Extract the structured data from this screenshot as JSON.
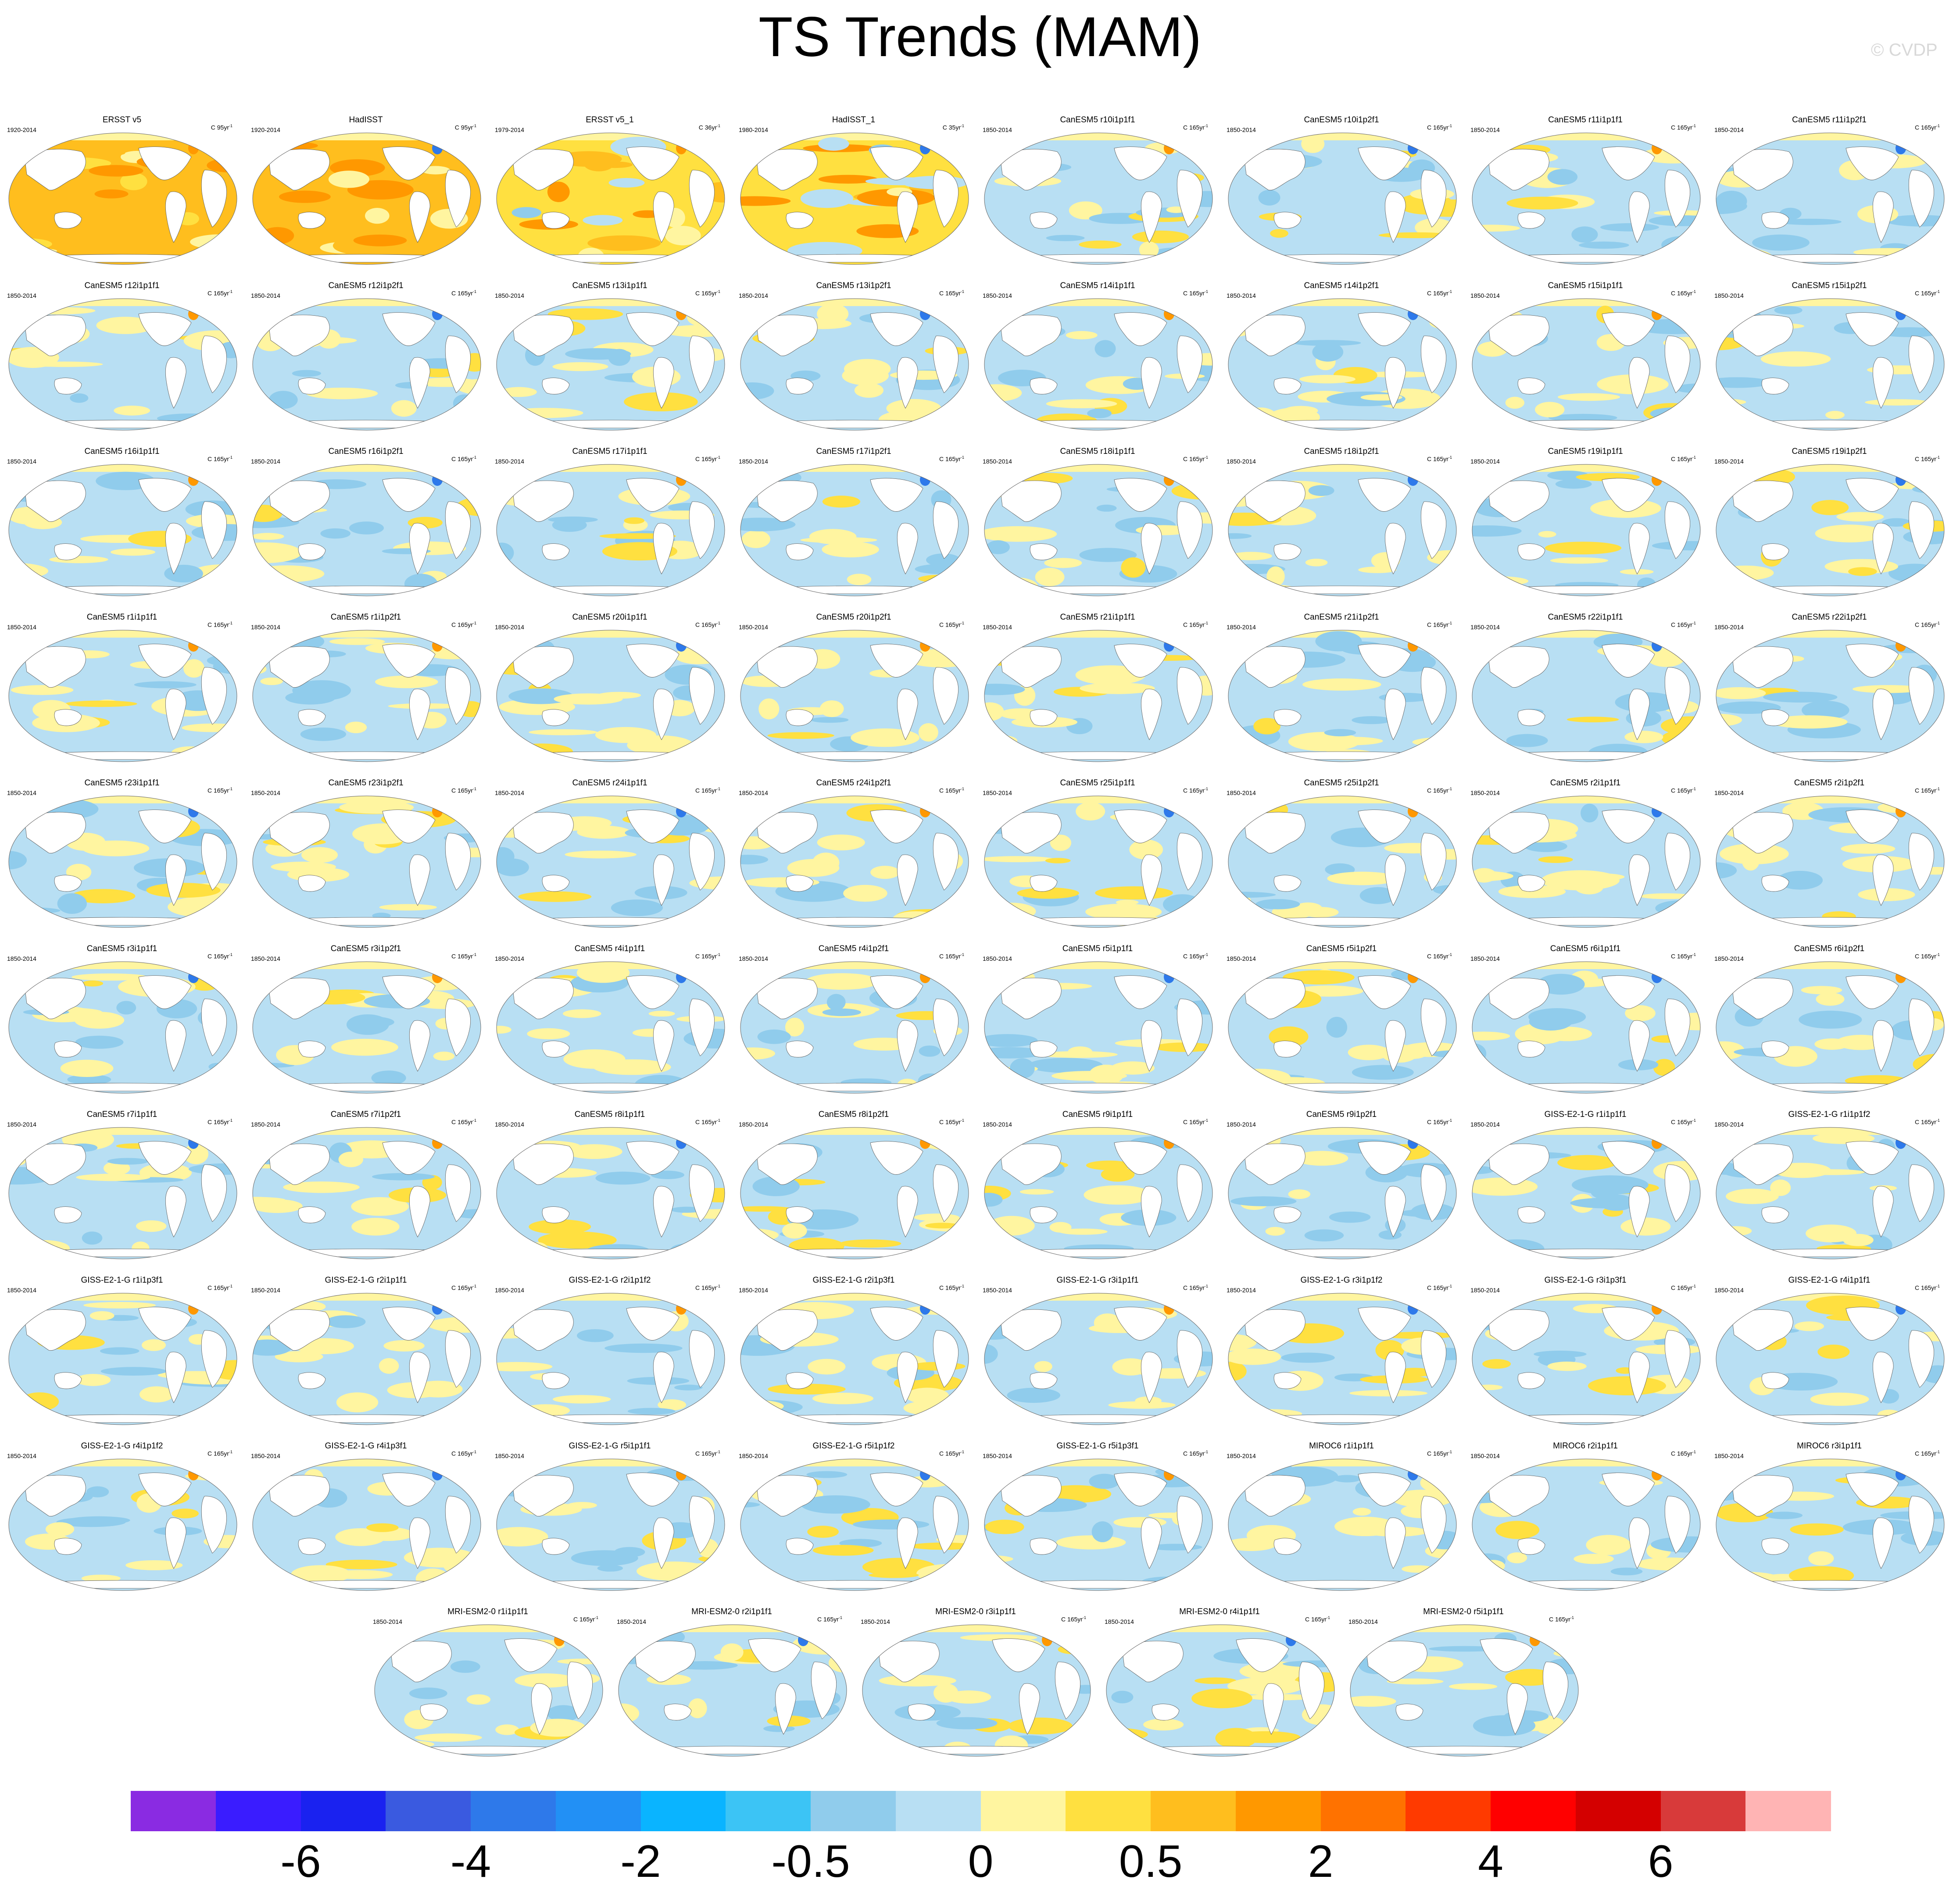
{
  "title": "TS Trends (MAM)",
  "watermark": "© CVDP",
  "panels": [
    {
      "title": "ERSST v5",
      "period": "1920-2014",
      "units": "C 95yr",
      "tone": "warm-strong"
    },
    {
      "title": "HadISST",
      "period": "1920-2014",
      "units": "C 95yr",
      "tone": "warm-strong"
    },
    {
      "title": "ERSST v5_1",
      "period": "1979-2014",
      "units": "C 36yr",
      "tone": "warm-mixed"
    },
    {
      "title": "HadISST_1",
      "period": "1980-2014",
      "units": "C 35yr",
      "tone": "warm-mixed"
    },
    {
      "title": "CanESM5 r10i1p1f1",
      "period": "1850-2014",
      "units": "C 165yr",
      "tone": "mixed"
    },
    {
      "title": "CanESM5 r10i1p2f1",
      "period": "1850-2014",
      "units": "C 165yr",
      "tone": "mixed"
    },
    {
      "title": "CanESM5 r11i1p1f1",
      "period": "1850-2014",
      "units": "C 165yr",
      "tone": "mixed"
    },
    {
      "title": "CanESM5 r11i1p2f1",
      "period": "1850-2014",
      "units": "C 165yr",
      "tone": "mixed"
    },
    {
      "title": "CanESM5 r12i1p1f1",
      "period": "1850-2014",
      "units": "C 165yr",
      "tone": "mixed"
    },
    {
      "title": "CanESM5 r12i1p2f1",
      "period": "1850-2014",
      "units": "C 165yr",
      "tone": "mixed"
    },
    {
      "title": "CanESM5 r13i1p1f1",
      "period": "1850-2014",
      "units": "C 165yr",
      "tone": "mixed"
    },
    {
      "title": "CanESM5 r13i1p2f1",
      "period": "1850-2014",
      "units": "C 165yr",
      "tone": "mixed"
    },
    {
      "title": "CanESM5 r14i1p1f1",
      "period": "1850-2014",
      "units": "C 165yr",
      "tone": "mixed"
    },
    {
      "title": "CanESM5 r14i1p2f1",
      "period": "1850-2014",
      "units": "C 165yr",
      "tone": "mixed"
    },
    {
      "title": "CanESM5 r15i1p1f1",
      "period": "1850-2014",
      "units": "C 165yr",
      "tone": "mixed"
    },
    {
      "title": "CanESM5 r15i1p2f1",
      "period": "1850-2014",
      "units": "C 165yr",
      "tone": "mixed"
    },
    {
      "title": "CanESM5 r16i1p1f1",
      "period": "1850-2014",
      "units": "C 165yr",
      "tone": "mixed"
    },
    {
      "title": "CanESM5 r16i1p2f1",
      "period": "1850-2014",
      "units": "C 165yr",
      "tone": "mixed"
    },
    {
      "title": "CanESM5 r17i1p1f1",
      "period": "1850-2014",
      "units": "C 165yr",
      "tone": "mixed"
    },
    {
      "title": "CanESM5 r17i1p2f1",
      "period": "1850-2014",
      "units": "C 165yr",
      "tone": "mixed"
    },
    {
      "title": "CanESM5 r18i1p1f1",
      "period": "1850-2014",
      "units": "C 165yr",
      "tone": "mixed"
    },
    {
      "title": "CanESM5 r18i1p2f1",
      "period": "1850-2014",
      "units": "C 165yr",
      "tone": "mixed"
    },
    {
      "title": "CanESM5 r19i1p1f1",
      "period": "1850-2014",
      "units": "C 165yr",
      "tone": "mixed"
    },
    {
      "title": "CanESM5 r19i1p2f1",
      "period": "1850-2014",
      "units": "C 165yr",
      "tone": "mixed"
    },
    {
      "title": "CanESM5 r1i1p1f1",
      "period": "1850-2014",
      "units": "C 165yr",
      "tone": "mixed"
    },
    {
      "title": "CanESM5 r1i1p2f1",
      "period": "1850-2014",
      "units": "C 165yr",
      "tone": "mixed"
    },
    {
      "title": "CanESM5 r20i1p1f1",
      "period": "1850-2014",
      "units": "C 165yr",
      "tone": "mixed"
    },
    {
      "title": "CanESM5 r20i1p2f1",
      "period": "1850-2014",
      "units": "C 165yr",
      "tone": "mixed"
    },
    {
      "title": "CanESM5 r21i1p1f1",
      "period": "1850-2014",
      "units": "C 165yr",
      "tone": "mixed"
    },
    {
      "title": "CanESM5 r21i1p2f1",
      "period": "1850-2014",
      "units": "C 165yr",
      "tone": "mixed"
    },
    {
      "title": "CanESM5 r22i1p1f1",
      "period": "1850-2014",
      "units": "C 165yr",
      "tone": "mixed"
    },
    {
      "title": "CanESM5 r22i1p2f1",
      "period": "1850-2014",
      "units": "C 165yr",
      "tone": "mixed"
    },
    {
      "title": "CanESM5 r23i1p1f1",
      "period": "1850-2014",
      "units": "C 165yr",
      "tone": "mixed"
    },
    {
      "title": "CanESM5 r23i1p2f1",
      "period": "1850-2014",
      "units": "C 165yr",
      "tone": "mixed"
    },
    {
      "title": "CanESM5 r24i1p1f1",
      "period": "1850-2014",
      "units": "C 165yr",
      "tone": "mixed"
    },
    {
      "title": "CanESM5 r24i1p2f1",
      "period": "1850-2014",
      "units": "C 165yr",
      "tone": "mixed"
    },
    {
      "title": "CanESM5 r25i1p1f1",
      "period": "1850-2014",
      "units": "C 165yr",
      "tone": "mixed"
    },
    {
      "title": "CanESM5 r25i1p2f1",
      "period": "1850-2014",
      "units": "C 165yr",
      "tone": "mixed"
    },
    {
      "title": "CanESM5 r2i1p1f1",
      "period": "1850-2014",
      "units": "C 165yr",
      "tone": "mixed"
    },
    {
      "title": "CanESM5 r2i1p2f1",
      "period": "1850-2014",
      "units": "C 165yr",
      "tone": "mixed"
    },
    {
      "title": "CanESM5 r3i1p1f1",
      "period": "1850-2014",
      "units": "C 165yr",
      "tone": "mixed"
    },
    {
      "title": "CanESM5 r3i1p2f1",
      "period": "1850-2014",
      "units": "C 165yr",
      "tone": "mixed"
    },
    {
      "title": "CanESM5 r4i1p1f1",
      "period": "1850-2014",
      "units": "C 165yr",
      "tone": "mixed"
    },
    {
      "title": "CanESM5 r4i1p2f1",
      "period": "1850-2014",
      "units": "C 165yr",
      "tone": "mixed"
    },
    {
      "title": "CanESM5 r5i1p1f1",
      "period": "1850-2014",
      "units": "C 165yr",
      "tone": "mixed"
    },
    {
      "title": "CanESM5 r5i1p2f1",
      "period": "1850-2014",
      "units": "C 165yr",
      "tone": "mixed"
    },
    {
      "title": "CanESM5 r6i1p1f1",
      "period": "1850-2014",
      "units": "C 165yr",
      "tone": "mixed"
    },
    {
      "title": "CanESM5 r6i1p2f1",
      "period": "1850-2014",
      "units": "C 165yr",
      "tone": "mixed"
    },
    {
      "title": "CanESM5 r7i1p1f1",
      "period": "1850-2014",
      "units": "C 165yr",
      "tone": "mixed"
    },
    {
      "title": "CanESM5 r7i1p2f1",
      "period": "1850-2014",
      "units": "C 165yr",
      "tone": "mixed"
    },
    {
      "title": "CanESM5 r8i1p1f1",
      "period": "1850-2014",
      "units": "C 165yr",
      "tone": "mixed"
    },
    {
      "title": "CanESM5 r8i1p2f1",
      "period": "1850-2014",
      "units": "C 165yr",
      "tone": "mixed"
    },
    {
      "title": "CanESM5 r9i1p1f1",
      "period": "1850-2014",
      "units": "C 165yr",
      "tone": "mixed"
    },
    {
      "title": "CanESM5 r9i1p2f1",
      "period": "1850-2014",
      "units": "C 165yr",
      "tone": "mixed"
    },
    {
      "title": "GISS-E2-1-G r1i1p1f1",
      "period": "1850-2014",
      "units": "C 165yr",
      "tone": "mixed"
    },
    {
      "title": "GISS-E2-1-G r1i1p1f2",
      "period": "1850-2014",
      "units": "C 165yr",
      "tone": "mixed"
    },
    {
      "title": "GISS-E2-1-G r1i1p3f1",
      "period": "1850-2014",
      "units": "C 165yr",
      "tone": "mixed"
    },
    {
      "title": "GISS-E2-1-G r2i1p1f1",
      "period": "1850-2014",
      "units": "C 165yr",
      "tone": "mixed"
    },
    {
      "title": "GISS-E2-1-G r2i1p1f2",
      "period": "1850-2014",
      "units": "C 165yr",
      "tone": "mixed"
    },
    {
      "title": "GISS-E2-1-G r2i1p3f1",
      "period": "1850-2014",
      "units": "C 165yr",
      "tone": "mixed"
    },
    {
      "title": "GISS-E2-1-G r3i1p1f1",
      "period": "1850-2014",
      "units": "C 165yr",
      "tone": "mixed"
    },
    {
      "title": "GISS-E2-1-G r3i1p1f2",
      "period": "1850-2014",
      "units": "C 165yr",
      "tone": "mixed"
    },
    {
      "title": "GISS-E2-1-G r3i1p3f1",
      "period": "1850-2014",
      "units": "C 165yr",
      "tone": "mixed"
    },
    {
      "title": "GISS-E2-1-G r4i1p1f1",
      "period": "1850-2014",
      "units": "C 165yr",
      "tone": "mixed"
    },
    {
      "title": "GISS-E2-1-G r4i1p1f2",
      "period": "1850-2014",
      "units": "C 165yr",
      "tone": "mixed"
    },
    {
      "title": "GISS-E2-1-G r4i1p3f1",
      "period": "1850-2014",
      "units": "C 165yr",
      "tone": "mixed"
    },
    {
      "title": "GISS-E2-1-G r5i1p1f1",
      "period": "1850-2014",
      "units": "C 165yr",
      "tone": "mixed"
    },
    {
      "title": "GISS-E2-1-G r5i1p1f2",
      "period": "1850-2014",
      "units": "C 165yr",
      "tone": "mixed"
    },
    {
      "title": "GISS-E2-1-G r5i1p3f1",
      "period": "1850-2014",
      "units": "C 165yr",
      "tone": "mixed"
    },
    {
      "title": "MIROC6 r1i1p1f1",
      "period": "1850-2014",
      "units": "C 165yr",
      "tone": "mixed"
    },
    {
      "title": "MIROC6 r2i1p1f1",
      "period": "1850-2014",
      "units": "C 165yr",
      "tone": "mixed"
    },
    {
      "title": "MIROC6 r3i1p1f1",
      "period": "1850-2014",
      "units": "C 165yr",
      "tone": "mixed"
    },
    {
      "title": "MRI-ESM2-0 r1i1p1f1",
      "period": "1850-2014",
      "units": "C 165yr",
      "tone": "mixed"
    },
    {
      "title": "MRI-ESM2-0 r2i1p1f1",
      "period": "1850-2014",
      "units": "C 165yr",
      "tone": "mixed"
    },
    {
      "title": "MRI-ESM2-0 r3i1p1f1",
      "period": "1850-2014",
      "units": "C 165yr",
      "tone": "mixed"
    },
    {
      "title": "MRI-ESM2-0 r4i1p1f1",
      "period": "1850-2014",
      "units": "C 165yr",
      "tone": "mixed"
    },
    {
      "title": "MRI-ESM2-0 r5i1p1f1",
      "period": "1850-2014",
      "units": "C 165yr",
      "tone": "mixed"
    }
  ],
  "units_exponent": "-1",
  "colorbar": {
    "colors": [
      "#8a2be2",
      "#3a1cff",
      "#1a22f0",
      "#3a5ae0",
      "#2e79ea",
      "#2290f5",
      "#0ab4ff",
      "#3cc4f5",
      "#90ccec",
      "#b8dff3",
      "#fff5a0",
      "#ffe040",
      "#ffbe1e",
      "#ff9800",
      "#ff7200",
      "#ff3a00",
      "#ff0000",
      "#d40000",
      "#d83a3a",
      "#ffb4b4"
    ],
    "labels": [
      "-6",
      "-4",
      "-2",
      "-0.5",
      "0",
      "0.5",
      "2",
      "4",
      "6"
    ],
    "label_boundaries": [
      2,
      4,
      6,
      8,
      10,
      12,
      14,
      16,
      18
    ]
  }
}
